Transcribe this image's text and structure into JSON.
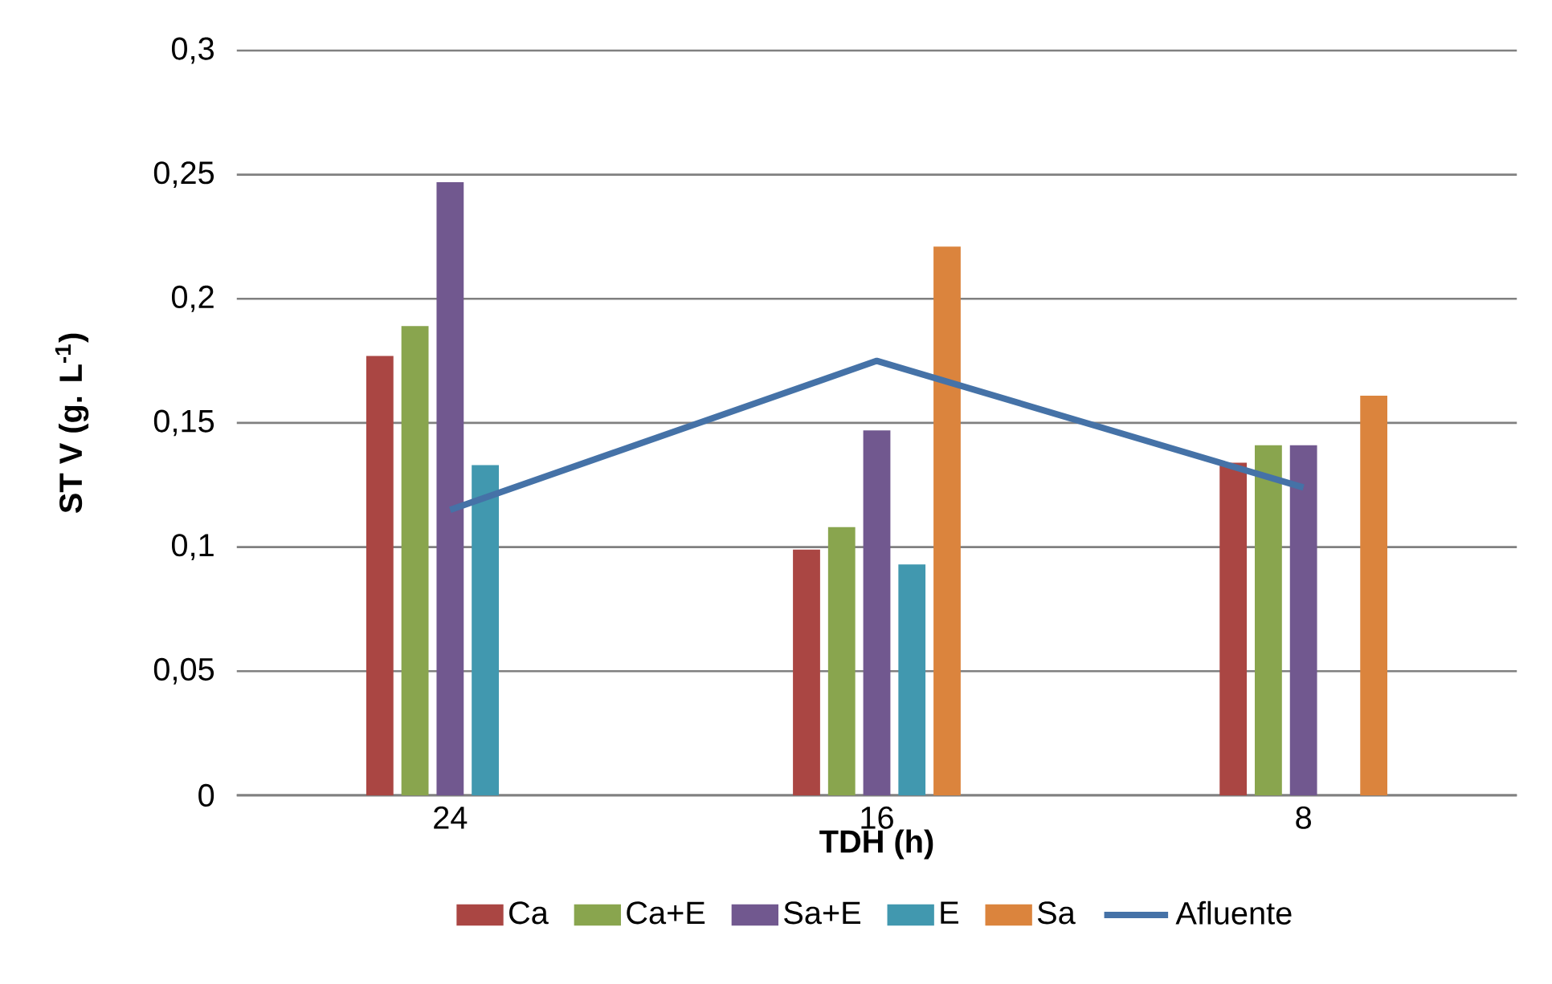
{
  "chart_data": {
    "type": "bar",
    "xlabel": "TDH (h)",
    "ylabel": "ST V (g. L$^{-1}$)",
    "categories": [
      "24",
      "16",
      "8"
    ],
    "series": [
      {
        "name": "Ca",
        "color": "#aa4643",
        "values": [
          0.177,
          0.099,
          0.134
        ]
      },
      {
        "name": "Ca+E",
        "color": "#89a54e",
        "values": [
          0.189,
          0.108,
          0.141
        ]
      },
      {
        "name": "Sa+E",
        "color": "#71588f",
        "values": [
          0.247,
          0.147,
          0.141
        ]
      },
      {
        "name": "E",
        "color": "#4198af",
        "values": [
          0.133,
          0.093,
          null
        ]
      },
      {
        "name": "Sa",
        "color": "#db843d",
        "values": [
          null,
          0.221,
          0.161
        ]
      },
      {
        "name": "Afluente",
        "type": "line",
        "color": "#4572a7",
        "values": [
          0.115,
          0.175,
          0.124
        ]
      }
    ],
    "ylim": [
      0,
      0.3
    ],
    "yticks": [
      0,
      {
        "value": 0.05,
        "label": "0,05"
      },
      {
        "value": 0.1,
        "label": "0,1"
      },
      {
        "value": 0.15,
        "label": "0,15"
      },
      {
        "value": 0.2,
        "label": "0,2"
      },
      {
        "value": 0.25,
        "label": "0,25"
      },
      {
        "value": 0.3,
        "label": "0,3"
      }
    ],
    "grid": "y",
    "legend": "bottom",
    "marker": "none",
    "line_style": "solid"
  }
}
